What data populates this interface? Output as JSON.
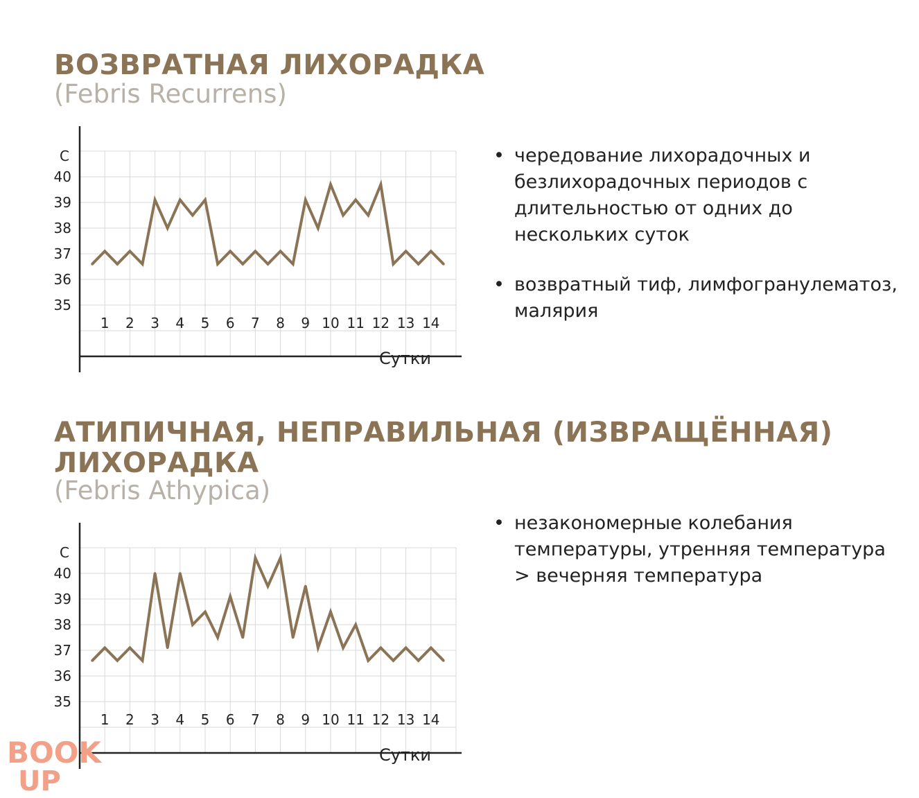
{
  "colors": {
    "accent": "#8b7355",
    "subtitle": "#b8b1a8",
    "grid": "#d8d8d8",
    "axis": "#222222",
    "logo": "#f3a088"
  },
  "sections": [
    {
      "title": "ВОЗВРАТНАЯ ЛИХОРАДКА",
      "subtitle": "(Febris Recurrens)",
      "bullets": [
        "чередование лихорадочных и безлихорадочных периодов с длительностью от одних до нескольких суток",
        "возвратный тиф, лимфогранулематоз, малярия"
      ]
    },
    {
      "title": "АТИПИЧНАЯ, НЕПРАВИЛЬНАЯ (ИЗВРАЩЁННАЯ) ЛИХОРАДКА",
      "subtitle": "(Febris Athypica)",
      "bullets": [
        "незакономерные колебания температуры, утренняя температура > вечерняя температура"
      ]
    }
  ],
  "chart_data": [
    {
      "type": "line",
      "xlabel": "Сутки",
      "ylabel": "C",
      "categories": [
        "1",
        "2",
        "3",
        "4",
        "5",
        "6",
        "7",
        "8",
        "9",
        "10",
        "11",
        "12",
        "13",
        "14"
      ],
      "yticks": [
        "40",
        "39",
        "38",
        "37",
        "36",
        "35"
      ],
      "ylim": [
        35,
        40
      ],
      "grid": true,
      "series": [
        {
          "x": [
            0.5,
            1,
            1.5,
            2,
            2.5,
            3,
            3.5,
            4,
            4.5,
            5,
            5.5,
            6,
            6.5,
            7,
            7.5,
            8,
            8.5,
            9,
            9.5,
            10,
            10.5,
            11,
            11.5,
            12,
            12.5,
            13,
            13.5,
            14,
            14.5
          ],
          "values": [
            36.6,
            37.1,
            36.6,
            37.1,
            36.6,
            39.1,
            38,
            39.1,
            38.5,
            39.1,
            36.6,
            37.1,
            36.6,
            37.1,
            36.6,
            37.1,
            36.6,
            39.1,
            38,
            39.7,
            38.5,
            39.1,
            38.5,
            39.7,
            36.6,
            37.1,
            36.6,
            37.1,
            36.6
          ]
        }
      ]
    },
    {
      "type": "line",
      "xlabel": "Сутки",
      "ylabel": "C",
      "categories": [
        "1",
        "2",
        "3",
        "4",
        "5",
        "6",
        "7",
        "8",
        "9",
        "10",
        "11",
        "12",
        "13",
        "14"
      ],
      "yticks": [
        "40",
        "39",
        "38",
        "37",
        "36",
        "35"
      ],
      "ylim": [
        35,
        40
      ],
      "grid": true,
      "series": [
        {
          "x": [
            0.5,
            1,
            1.5,
            2,
            2.5,
            3,
            3.5,
            4,
            4.5,
            5,
            5.5,
            6,
            6.5,
            7,
            7.5,
            8,
            8.5,
            9,
            9.5,
            10,
            10.5,
            11,
            11.5,
            12,
            12.5,
            13,
            13.5,
            14,
            14.5
          ],
          "values": [
            36.6,
            37.1,
            36.6,
            37.1,
            36.6,
            40,
            37.1,
            40,
            38,
            38.5,
            37.5,
            39.1,
            37.5,
            40.6,
            39.5,
            40.6,
            37.5,
            39.5,
            37.1,
            38.5,
            37.1,
            38,
            36.6,
            37.1,
            36.6,
            37.1,
            36.6,
            37.1,
            36.6
          ]
        }
      ]
    }
  ],
  "logo": {
    "line1": "BOOK",
    "line2": "UP"
  }
}
